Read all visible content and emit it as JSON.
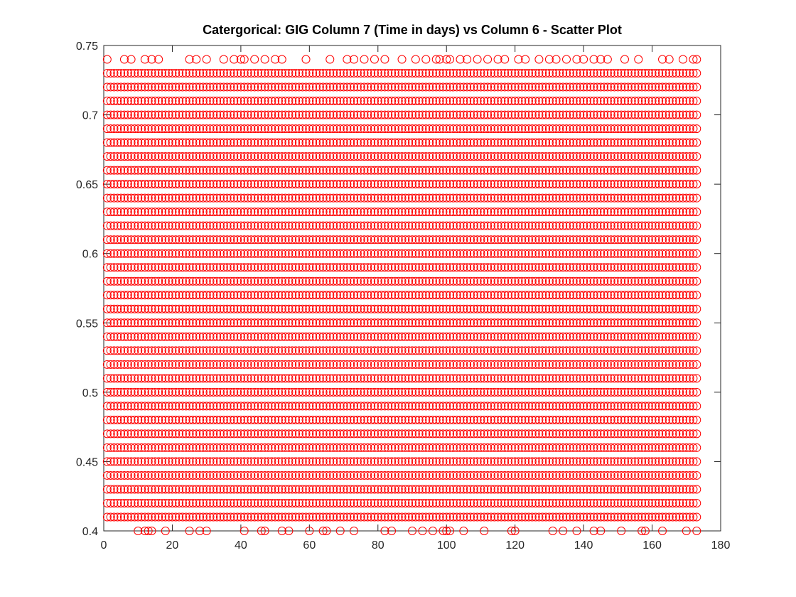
{
  "chart_data": {
    "type": "scatter",
    "title": "Catergorical: GIG Column 7 (Time in days) vs Column 6 - Scatter Plot",
    "xlim": [
      0,
      180
    ],
    "ylim": [
      0.4,
      0.75
    ],
    "xticks": [
      0,
      20,
      40,
      60,
      80,
      100,
      120,
      140,
      160,
      180
    ],
    "yticks": [
      0.4,
      0.45,
      0.5,
      0.55,
      0.6,
      0.65,
      0.7,
      0.75
    ],
    "color": "#ff0000",
    "grid_x": [
      1,
      2,
      3,
      4,
      5,
      6,
      7,
      8,
      9,
      10,
      11,
      12,
      13,
      14,
      15,
      16,
      17,
      18,
      19,
      20,
      21,
      22,
      23,
      24,
      25,
      26,
      27,
      28,
      29,
      30,
      31,
      32,
      33,
      34,
      35,
      36,
      37,
      38,
      39,
      40,
      41,
      42,
      43,
      44,
      45,
      46,
      47,
      48,
      49,
      50,
      51,
      52,
      53,
      54,
      55,
      56,
      57,
      58,
      59,
      60,
      61,
      62,
      63,
      64,
      65,
      66,
      67,
      68,
      69,
      70,
      71,
      72,
      73,
      74,
      75,
      76,
      77,
      78,
      79,
      80,
      81,
      82,
      83,
      84,
      85,
      86,
      87,
      88,
      89,
      90,
      91,
      92,
      93,
      94,
      95,
      96,
      97,
      98,
      99,
      100,
      101,
      102,
      103,
      104,
      105,
      106,
      107,
      108,
      109,
      110,
      111,
      112,
      113,
      114,
      115,
      116,
      117,
      118,
      119,
      120,
      121,
      122,
      123,
      124,
      125,
      126,
      127,
      128,
      129,
      130,
      131,
      132,
      133,
      134,
      135,
      136,
      137,
      138,
      139,
      140,
      141,
      142,
      143,
      144,
      145,
      146,
      147,
      148,
      149,
      150,
      151,
      152,
      153,
      154,
      155,
      156,
      157,
      158,
      159,
      160,
      161,
      162,
      163,
      164,
      165,
      166,
      167,
      168,
      169,
      170,
      171,
      172,
      173
    ],
    "grid_rows": [
      0.41,
      0.42,
      0.43,
      0.44,
      0.45,
      0.46,
      0.47,
      0.48,
      0.49,
      0.5,
      0.51,
      0.52,
      0.53,
      0.54,
      0.55,
      0.56,
      0.57,
      0.58,
      0.59,
      0.6,
      0.61,
      0.62,
      0.63,
      0.64,
      0.65,
      0.66,
      0.67,
      0.68,
      0.69,
      0.7,
      0.71,
      0.72,
      0.73
    ],
    "sparse_rows": [
      {
        "y": 0.74,
        "x": [
          1,
          6,
          8,
          12,
          14,
          16,
          25,
          27,
          30,
          35,
          38,
          40,
          41,
          44,
          47,
          50,
          52,
          59,
          66,
          71,
          73,
          76,
          79,
          82,
          87,
          91,
          94,
          97,
          98,
          100,
          101,
          104,
          106,
          109,
          112,
          115,
          117,
          121,
          123,
          127,
          130,
          132,
          135,
          138,
          140,
          143,
          145,
          147,
          152,
          156,
          163,
          165,
          169,
          172,
          173
        ]
      },
      {
        "y": 0.4,
        "x": [
          10,
          12,
          13,
          14,
          18,
          25,
          28,
          30,
          41,
          46,
          47,
          52,
          54,
          60,
          64,
          65,
          69,
          73,
          82,
          84,
          90,
          93,
          96,
          99,
          100,
          101,
          105,
          111,
          119,
          120,
          131,
          134,
          138,
          143,
          145,
          151,
          157,
          158,
          163,
          170,
          173
        ]
      }
    ]
  }
}
